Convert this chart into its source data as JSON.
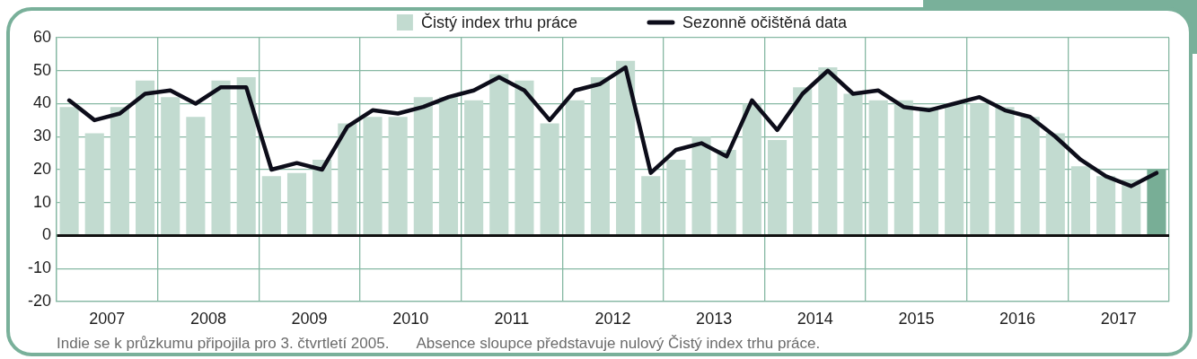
{
  "chart_data": {
    "type": "bar",
    "x": [
      2007.125,
      2007.375,
      2007.625,
      2007.875,
      2008.125,
      2008.375,
      2008.625,
      2008.875,
      2009.125,
      2009.375,
      2009.625,
      2009.875,
      2010.125,
      2010.375,
      2010.625,
      2010.875,
      2011.125,
      2011.375,
      2011.625,
      2011.875,
      2012.125,
      2012.375,
      2012.625,
      2012.875,
      2013.125,
      2013.375,
      2013.625,
      2013.875,
      2014.125,
      2014.375,
      2014.625,
      2014.875,
      2015.125,
      2015.375,
      2015.625,
      2015.875,
      2016.125,
      2016.375,
      2016.625,
      2016.875,
      2017.125,
      2017.375,
      2017.625,
      2017.875
    ],
    "series": [
      {
        "name": "Čistý index trhu práce",
        "color": "#c2dbd0",
        "colors": [
          "#c2dbd0",
          "#c2dbd0",
          "#c2dbd0",
          "#c2dbd0",
          "#c2dbd0",
          "#c2dbd0",
          "#c2dbd0",
          "#c2dbd0",
          "#c2dbd0",
          "#c2dbd0",
          "#c2dbd0",
          "#c2dbd0",
          "#c2dbd0",
          "#c2dbd0",
          "#c2dbd0",
          "#c2dbd0",
          "#c2dbd0",
          "#c2dbd0",
          "#c2dbd0",
          "#c2dbd0",
          "#c2dbd0",
          "#c2dbd0",
          "#c2dbd0",
          "#c2dbd0",
          "#c2dbd0",
          "#c2dbd0",
          "#c2dbd0",
          "#c2dbd0",
          "#c2dbd0",
          "#c2dbd0",
          "#c2dbd0",
          "#c2dbd0",
          "#c2dbd0",
          "#c2dbd0",
          "#c2dbd0",
          "#c2dbd0",
          "#c2dbd0",
          "#c2dbd0",
          "#c2dbd0",
          "#c2dbd0",
          "#c2dbd0",
          "#c2dbd0",
          "#c2dbd0",
          "#78ae96"
        ],
        "values": [
          39,
          31,
          39,
          47,
          42,
          36,
          47,
          48,
          18,
          19,
          23,
          34,
          36,
          36,
          42,
          42,
          41,
          49,
          47,
          34,
          41,
          48,
          53,
          18,
          23,
          30,
          26,
          40,
          29,
          45,
          51,
          43,
          41,
          41,
          39,
          40,
          40,
          39,
          36,
          31,
          21,
          18,
          17,
          20
        ]
      },
      {
        "name": "Sezonně očištěná data",
        "type": "line",
        "color": "#0d0d1a",
        "values": [
          41,
          35,
          37,
          43,
          44,
          40,
          45,
          45,
          20,
          22,
          20,
          33,
          38,
          37,
          39,
          42,
          44,
          48,
          44,
          35,
          44,
          46,
          51,
          19,
          26,
          28,
          24,
          41,
          32,
          43,
          50,
          43,
          44,
          39,
          38,
          40,
          42,
          38,
          36,
          30,
          23,
          18,
          15,
          19
        ]
      }
    ],
    "xlim": [
      2007,
      2018
    ],
    "xticks": [
      {
        "value": 2007,
        "label": null
      },
      {
        "value": 2007.5,
        "label": "2007"
      },
      {
        "value": 2008,
        "label": null
      },
      {
        "value": 2008.5,
        "label": "2008"
      },
      {
        "value": 2009,
        "label": null
      },
      {
        "value": 2009.5,
        "label": "2009"
      },
      {
        "value": 2010,
        "label": null
      },
      {
        "value": 2010.5,
        "label": "2010"
      },
      {
        "value": 2011,
        "label": null
      },
      {
        "value": 2011.5,
        "label": "2011"
      },
      {
        "value": 2012,
        "label": null
      },
      {
        "value": 2012.5,
        "label": "2012"
      },
      {
        "value": 2013,
        "label": null
      },
      {
        "value": 2013.5,
        "label": "2013"
      },
      {
        "value": 2014,
        "label": null
      },
      {
        "value": 2014.5,
        "label": "2014"
      },
      {
        "value": 2015,
        "label": null
      },
      {
        "value": 2015.5,
        "label": "2015"
      },
      {
        "value": 2016,
        "label": null
      },
      {
        "value": 2016.5,
        "label": "2016"
      },
      {
        "value": 2017,
        "label": null
      },
      {
        "value": 2017.5,
        "label": "2017"
      },
      {
        "value": 2018,
        "label": null
      }
    ],
    "ylim": [
      -20,
      60
    ],
    "yticks": [
      -20,
      -10,
      0,
      10,
      20,
      30,
      40,
      50,
      60
    ],
    "grid": true,
    "legend": "top",
    "annotations": [
      "Indie se k průzkumu připojila pro 3. čtvrtletí 2005.",
      "Absence sloupce představuje nulový Čistý index trhu práce."
    ]
  }
}
